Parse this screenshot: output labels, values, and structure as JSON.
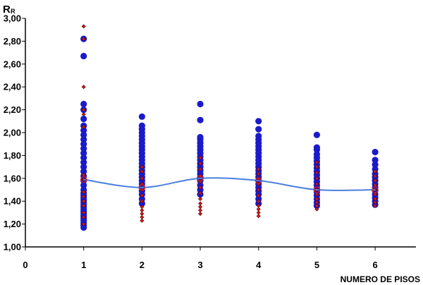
{
  "chart_data": {
    "type": "scatter",
    "title": "",
    "xlabel": "NUMERO DE PISOS",
    "ylabel": "R",
    "ylabel_sub": "R",
    "xlim": [
      0,
      6.7
    ],
    "ylim": [
      1.0,
      3.0
    ],
    "x_ticks": [
      "0",
      "1",
      "2",
      "3",
      "4",
      "5",
      "6"
    ],
    "y_ticks": [
      "1,00",
      "1,20",
      "1,40",
      "1,60",
      "1,80",
      "2,00",
      "2,20",
      "2,40",
      "2,60",
      "2,80",
      "3,00"
    ],
    "grid": false,
    "legend": "none",
    "colors": {
      "blue_points": "#1a1acc",
      "red_points": "#cc1a1a",
      "mean_line": "#4a7fe0",
      "axis": "#000000"
    },
    "series": [
      {
        "marker": "circle",
        "color": "#1a1acc",
        "points": [
          [
            1,
            1.17
          ],
          [
            1,
            1.19
          ],
          [
            1,
            1.21
          ],
          [
            1,
            1.23
          ],
          [
            1,
            1.25
          ],
          [
            1,
            1.27
          ],
          [
            1,
            1.29
          ],
          [
            1,
            1.31
          ],
          [
            1,
            1.33
          ],
          [
            1,
            1.35
          ],
          [
            1,
            1.37
          ],
          [
            1,
            1.39
          ],
          [
            1,
            1.41
          ],
          [
            1,
            1.43
          ],
          [
            1,
            1.45
          ],
          [
            1,
            1.47
          ],
          [
            1,
            1.5
          ],
          [
            1,
            1.54
          ],
          [
            1,
            1.58
          ],
          [
            1,
            1.62
          ],
          [
            1,
            1.66
          ],
          [
            1,
            1.7
          ],
          [
            1,
            1.74
          ],
          [
            1,
            1.78
          ],
          [
            1,
            1.82
          ],
          [
            1,
            1.86
          ],
          [
            1,
            1.9
          ],
          [
            1,
            1.94
          ],
          [
            1,
            1.98
          ],
          [
            1,
            2.02
          ],
          [
            1,
            2.06
          ],
          [
            1,
            2.12
          ],
          [
            1,
            2.2
          ],
          [
            1,
            2.25
          ],
          [
            1,
            2.67
          ],
          [
            1,
            2.82
          ],
          [
            2,
            1.38
          ],
          [
            2,
            1.42
          ],
          [
            2,
            1.46
          ],
          [
            2,
            1.49
          ],
          [
            2,
            1.52
          ],
          [
            2,
            1.55
          ],
          [
            2,
            1.58
          ],
          [
            2,
            1.61
          ],
          [
            2,
            1.64
          ],
          [
            2,
            1.67
          ],
          [
            2,
            1.7
          ],
          [
            2,
            1.73
          ],
          [
            2,
            1.76
          ],
          [
            2,
            1.79
          ],
          [
            2,
            1.82
          ],
          [
            2,
            1.85
          ],
          [
            2,
            1.88
          ],
          [
            2,
            1.91
          ],
          [
            2,
            1.94
          ],
          [
            2,
            1.97
          ],
          [
            2,
            2.0
          ],
          [
            2,
            2.03
          ],
          [
            2,
            2.06
          ],
          [
            2,
            2.14
          ],
          [
            3,
            1.46
          ],
          [
            3,
            1.5
          ],
          [
            3,
            1.54
          ],
          [
            3,
            1.58
          ],
          [
            3,
            1.61
          ],
          [
            3,
            1.64
          ],
          [
            3,
            1.67
          ],
          [
            3,
            1.7
          ],
          [
            3,
            1.73
          ],
          [
            3,
            1.76
          ],
          [
            3,
            1.79
          ],
          [
            3,
            1.82
          ],
          [
            3,
            1.85
          ],
          [
            3,
            1.88
          ],
          [
            3,
            1.91
          ],
          [
            3,
            1.94
          ],
          [
            3,
            1.96
          ],
          [
            3,
            2.11
          ],
          [
            3,
            2.25
          ],
          [
            4,
            1.38
          ],
          [
            4,
            1.42
          ],
          [
            4,
            1.46
          ],
          [
            4,
            1.49
          ],
          [
            4,
            1.52
          ],
          [
            4,
            1.55
          ],
          [
            4,
            1.58
          ],
          [
            4,
            1.61
          ],
          [
            4,
            1.64
          ],
          [
            4,
            1.67
          ],
          [
            4,
            1.7
          ],
          [
            4,
            1.73
          ],
          [
            4,
            1.76
          ],
          [
            4,
            1.79
          ],
          [
            4,
            1.82
          ],
          [
            4,
            1.85
          ],
          [
            4,
            1.88
          ],
          [
            4,
            1.91
          ],
          [
            4,
            1.94
          ],
          [
            4,
            1.97
          ],
          [
            4,
            2.03
          ],
          [
            4,
            2.1
          ],
          [
            5,
            1.36
          ],
          [
            5,
            1.39
          ],
          [
            5,
            1.42
          ],
          [
            5,
            1.45
          ],
          [
            5,
            1.48
          ],
          [
            5,
            1.51
          ],
          [
            5,
            1.54
          ],
          [
            5,
            1.57
          ],
          [
            5,
            1.6
          ],
          [
            5,
            1.63
          ],
          [
            5,
            1.66
          ],
          [
            5,
            1.69
          ],
          [
            5,
            1.72
          ],
          [
            5,
            1.75
          ],
          [
            5,
            1.78
          ],
          [
            5,
            1.81
          ],
          [
            5,
            1.85
          ],
          [
            5,
            1.87
          ],
          [
            5,
            1.98
          ],
          [
            6,
            1.37
          ],
          [
            6,
            1.4
          ],
          [
            6,
            1.43
          ],
          [
            6,
            1.46
          ],
          [
            6,
            1.49
          ],
          [
            6,
            1.52
          ],
          [
            6,
            1.55
          ],
          [
            6,
            1.58
          ],
          [
            6,
            1.61
          ],
          [
            6,
            1.64
          ],
          [
            6,
            1.68
          ],
          [
            6,
            1.72
          ],
          [
            6,
            1.76
          ],
          [
            6,
            1.83
          ]
        ]
      },
      {
        "marker": "diamond",
        "color": "#cc1a1a",
        "points": [
          [
            1,
            1.2
          ],
          [
            1,
            1.26
          ],
          [
            1,
            1.3
          ],
          [
            1,
            1.36
          ],
          [
            1,
            1.4
          ],
          [
            1,
            1.44
          ],
          [
            1,
            1.48
          ],
          [
            1,
            1.59
          ],
          [
            1,
            1.63
          ],
          [
            1,
            2.05
          ],
          [
            1,
            2.16
          ],
          [
            1,
            2.2
          ],
          [
            1,
            2.4
          ],
          [
            1,
            2.82
          ],
          [
            1,
            2.93
          ],
          [
            2,
            1.23
          ],
          [
            2,
            1.26
          ],
          [
            2,
            1.29
          ],
          [
            2,
            1.32
          ],
          [
            2,
            1.35
          ],
          [
            2,
            1.4
          ],
          [
            2,
            1.45
          ],
          [
            2,
            1.5
          ],
          [
            2,
            1.55
          ],
          [
            2,
            1.6
          ],
          [
            2,
            1.66
          ],
          [
            2,
            1.7
          ],
          [
            3,
            1.29
          ],
          [
            3,
            1.32
          ],
          [
            3,
            1.35
          ],
          [
            3,
            1.38
          ],
          [
            3,
            1.42
          ],
          [
            3,
            1.47
          ],
          [
            3,
            1.52
          ],
          [
            3,
            1.57
          ],
          [
            3,
            1.62
          ],
          [
            3,
            1.68
          ],
          [
            3,
            1.73
          ],
          [
            3,
            1.78
          ],
          [
            4,
            1.27
          ],
          [
            4,
            1.3
          ],
          [
            4,
            1.33
          ],
          [
            4,
            1.36
          ],
          [
            4,
            1.4
          ],
          [
            4,
            1.45
          ],
          [
            4,
            1.5
          ],
          [
            4,
            1.55
          ],
          [
            4,
            1.6
          ],
          [
            4,
            1.64
          ],
          [
            4,
            1.68
          ],
          [
            5,
            1.33
          ],
          [
            5,
            1.36
          ],
          [
            5,
            1.39
          ],
          [
            5,
            1.42
          ],
          [
            5,
            1.46
          ],
          [
            5,
            1.5
          ],
          [
            5,
            1.55
          ],
          [
            5,
            1.6
          ],
          [
            5,
            1.65
          ],
          [
            5,
            1.7
          ],
          [
            5,
            1.74
          ],
          [
            6,
            1.36
          ],
          [
            6,
            1.39
          ],
          [
            6,
            1.42
          ],
          [
            6,
            1.46
          ],
          [
            6,
            1.5
          ],
          [
            6,
            1.54
          ],
          [
            6,
            1.58
          ],
          [
            6,
            1.62
          ],
          [
            6,
            1.66
          ]
        ]
      }
    ],
    "mean_line": {
      "x": [
        1,
        2,
        3,
        4,
        5,
        6
      ],
      "y": [
        1.59,
        1.52,
        1.6,
        1.58,
        1.5,
        1.5
      ]
    }
  }
}
